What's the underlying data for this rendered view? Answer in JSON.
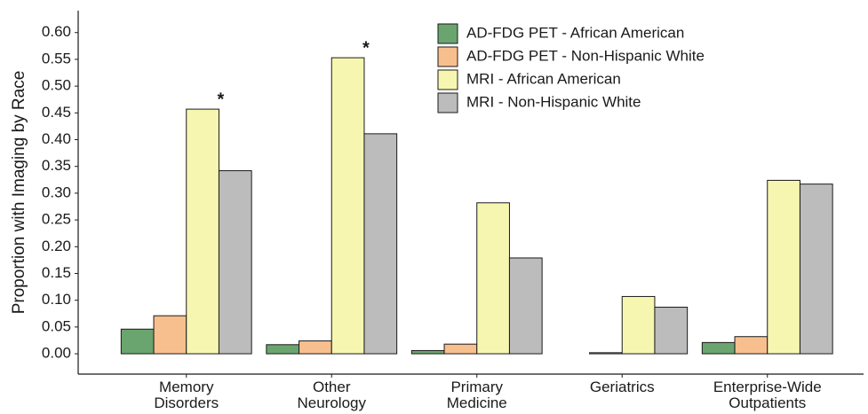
{
  "chart_data": {
    "type": "bar",
    "y_label": "Proportion with Imaging by Race",
    "categories": [
      "Memory\nDisorders",
      "Other\nNeurology",
      "Primary\nMedicine",
      "Geriatrics",
      "Enterprise-Wide\nOutpatients"
    ],
    "series": [
      {
        "name": "AD-FDG PET - African American",
        "color": "#6aa56f",
        "values": [
          0.046,
          0.017,
          0.006,
          0.0,
          0.021
        ]
      },
      {
        "name": "AD-FDG PET - Non-Hispanic White",
        "color": "#f8bf8e",
        "values": [
          0.071,
          0.024,
          0.018,
          0.002,
          0.032
        ]
      },
      {
        "name": "MRI - African American",
        "color": "#f7f6b1",
        "values": [
          0.457,
          0.553,
          0.282,
          0.107,
          0.324
        ]
      },
      {
        "name": "MRI - Non-Hispanic White",
        "color": "#bcbcbc",
        "values": [
          0.342,
          0.411,
          0.179,
          0.087,
          0.317
        ]
      }
    ],
    "ylim": [
      -0.038,
      0.641
    ],
    "yticks": [
      {
        "value": 0,
        "label": "0.00"
      },
      {
        "value": 0.05,
        "label": "0.05"
      },
      {
        "value": 0.1,
        "label": "0.10"
      },
      {
        "value": 0.15,
        "label": "0.15"
      },
      {
        "value": 0.2,
        "label": "0.20"
      },
      {
        "value": 0.25,
        "label": "0.25"
      },
      {
        "value": 0.3,
        "label": "0.30"
      },
      {
        "value": 0.35,
        "label": "0.35"
      },
      {
        "value": 0.4,
        "label": "0.40"
      },
      {
        "value": 0.45,
        "label": "0.45"
      },
      {
        "value": 0.5,
        "label": "0.50"
      },
      {
        "value": 0.55,
        "label": "0.55"
      },
      {
        "value": 0.6,
        "label": "0.60"
      }
    ],
    "annotations": [
      {
        "text": "*",
        "category": "Memory\nDisorders",
        "series": "MRI - African American"
      },
      {
        "text": "*",
        "category": "Other\nNeurology",
        "series": "MRI - African American"
      }
    ],
    "grid": false,
    "legend_position": "top-right"
  }
}
